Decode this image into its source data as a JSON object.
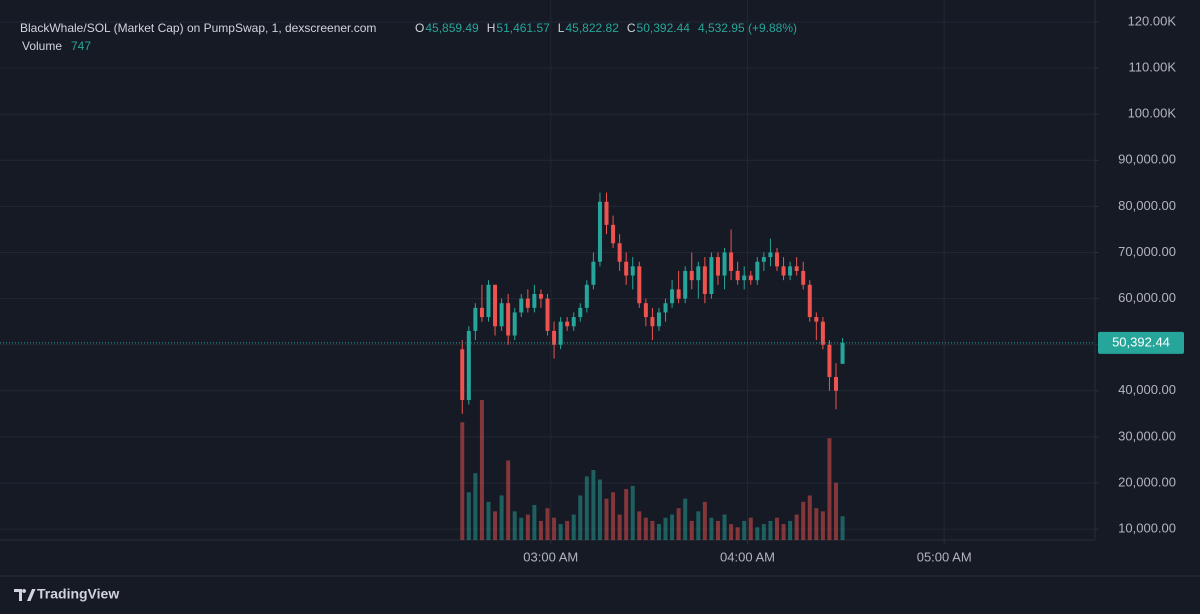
{
  "chart_data": {
    "type": "candlestick",
    "title": "BlackWhale/SOL (Market Cap) on PumpSwap, 1, dexscreener.com",
    "legend": {
      "o_label": "O",
      "o": "45,859.49",
      "h_label": "H",
      "h": "51,461.57",
      "l_label": "L",
      "l": "45,822.82",
      "c_label": "C",
      "c": "50,392.44",
      "change": "4,532.95 (+9.88%)",
      "volume_label": "Volume",
      "volume": "747"
    },
    "x": [
      "02:33 AM",
      "02:35 AM",
      "02:37 AM",
      "02:39 AM",
      "02:41 AM",
      "02:43 AM",
      "02:45 AM",
      "02:47 AM",
      "02:49 AM",
      "02:51 AM",
      "02:53 AM",
      "02:55 AM",
      "02:57 AM",
      "02:59 AM",
      "03:01 AM",
      "03:03 AM",
      "03:05 AM",
      "03:07 AM",
      "03:09 AM",
      "03:11 AM",
      "03:13 AM",
      "03:15 AM",
      "03:17 AM",
      "03:19 AM",
      "03:21 AM",
      "03:23 AM",
      "03:25 AM",
      "03:27 AM",
      "03:29 AM",
      "03:31 AM",
      "03:33 AM",
      "03:35 AM",
      "03:37 AM",
      "03:39 AM",
      "03:41 AM",
      "03:43 AM",
      "03:45 AM",
      "03:47 AM",
      "03:49 AM",
      "03:51 AM",
      "03:53 AM",
      "03:55 AM",
      "03:57 AM",
      "03:59 AM",
      "04:01 AM",
      "04:03 AM",
      "04:05 AM",
      "04:07 AM",
      "04:09 AM",
      "04:11 AM",
      "04:13 AM",
      "04:15 AM",
      "04:17 AM",
      "04:19 AM",
      "04:21 AM",
      "04:23 AM",
      "04:25 AM",
      "04:27 AM",
      "04:29 AM"
    ],
    "open": [
      49000,
      38000,
      53000,
      58000,
      56000,
      63000,
      54000,
      59000,
      52000,
      57000,
      60000,
      58000,
      61000,
      60000,
      53000,
      50000,
      55000,
      54000,
      56000,
      58000,
      63000,
      68000,
      81000,
      76000,
      72000,
      68000,
      65000,
      67000,
      59000,
      56000,
      54000,
      57000,
      59000,
      62000,
      60000,
      66000,
      64000,
      67000,
      61000,
      69000,
      65000,
      70000,
      66000,
      64000,
      65000,
      64000,
      68000,
      69000,
      70000,
      67000,
      65000,
      67000,
      66000,
      63000,
      56000,
      55000,
      50000,
      43000,
      45859.49
    ],
    "high": [
      51000,
      54000,
      59000,
      63000,
      64000,
      63000,
      60000,
      61000,
      58000,
      61000,
      62000,
      63000,
      62000,
      61000,
      55000,
      56000,
      56000,
      57000,
      59000,
      64000,
      70000,
      83000,
      83000,
      78000,
      74000,
      70000,
      69000,
      68000,
      60000,
      58000,
      58000,
      60000,
      64000,
      66000,
      67000,
      70000,
      68000,
      69000,
      70000,
      70000,
      71000,
      75000,
      68000,
      67000,
      66000,
      69000,
      70000,
      73000,
      71000,
      69000,
      68000,
      69000,
      68000,
      64000,
      57000,
      56000,
      51000,
      46000,
      51461.57
    ],
    "low": [
      35000,
      37000,
      51000,
      55000,
      55000,
      52000,
      53000,
      50000,
      51000,
      56000,
      57000,
      57000,
      58000,
      52000,
      47000,
      49000,
      53000,
      53000,
      55000,
      57000,
      62000,
      67000,
      74000,
      71000,
      66000,
      63000,
      62000,
      58000,
      54000,
      51000,
      53000,
      55000,
      58000,
      59000,
      59000,
      62000,
      60000,
      59000,
      60000,
      63000,
      62000,
      64000,
      63000,
      62000,
      63000,
      63000,
      66000,
      67000,
      66000,
      64000,
      64000,
      65000,
      62000,
      55000,
      51000,
      49000,
      40000,
      36000,
      45822.82
    ],
    "close": [
      38000,
      53000,
      58000,
      56000,
      63000,
      54000,
      59000,
      52000,
      57000,
      60000,
      58000,
      61000,
      60000,
      53000,
      50000,
      55000,
      54000,
      56000,
      58000,
      63000,
      68000,
      81000,
      76000,
      72000,
      68000,
      65000,
      67000,
      59000,
      56000,
      54000,
      57000,
      59000,
      62000,
      60000,
      66000,
      64000,
      67000,
      61000,
      69000,
      65000,
      70000,
      66000,
      64000,
      65000,
      64000,
      68000,
      69000,
      70000,
      67000,
      65000,
      67000,
      66000,
      63000,
      56000,
      55000,
      50000,
      43000,
      40000,
      50392.44
    ],
    "volume": [
      3700,
      1500,
      2100,
      4400,
      1200,
      900,
      1400,
      2500,
      900,
      700,
      800,
      1100,
      600,
      1000,
      700,
      500,
      600,
      800,
      1400,
      2000,
      2200,
      1900,
      1300,
      1500,
      800,
      1600,
      1700,
      900,
      700,
      600,
      500,
      700,
      800,
      1000,
      1300,
      600,
      900,
      1200,
      700,
      600,
      800,
      500,
      400,
      600,
      700,
      400,
      500,
      600,
      700,
      500,
      600,
      800,
      1200,
      1400,
      1000,
      900,
      3200,
      1800,
      747
    ],
    "up_color": "#26a69a",
    "down_color": "#ef5350",
    "last_price": 50392.44,
    "last_price_label": "50,392.44",
    "xlim": [
      "12:12 AM",
      "05:46 AM"
    ],
    "xticks": [
      "03:00 AM",
      "04:00 AM",
      "05:00 AM"
    ],
    "ylim": [
      7640,
      124770
    ],
    "yticks": [
      {
        "value": 10000,
        "label": "10,000.00"
      },
      {
        "value": 20000,
        "label": "20,000.00"
      },
      {
        "value": 30000,
        "label": "30,000.00"
      },
      {
        "value": 40000,
        "label": "40,000.00"
      },
      {
        "value": 50000,
        "label": "50,000.00"
      },
      {
        "value": 60000,
        "label": "60,000.00"
      },
      {
        "value": 70000,
        "label": "70,000.00"
      },
      {
        "value": 80000,
        "label": "80,000.00"
      },
      {
        "value": 90000,
        "label": "90,000.00"
      },
      {
        "value": 100000,
        "label": "100.00K"
      },
      {
        "value": 110000,
        "label": "110.00K"
      },
      {
        "value": 120000,
        "label": "120.00K"
      }
    ],
    "grid": true,
    "brand": "TradingView"
  }
}
